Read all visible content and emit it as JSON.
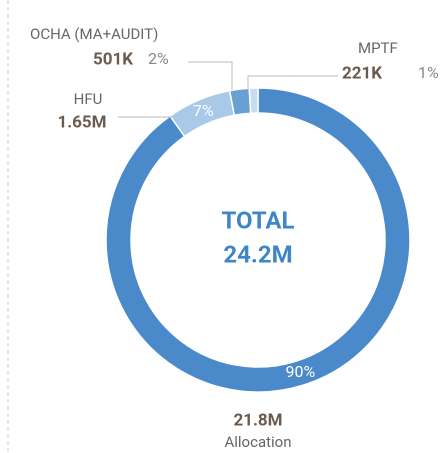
{
  "chart_data": {
    "type": "donut",
    "categories": [
      "Allocation",
      "HFU",
      "OCHA  (MA+AUDIT)",
      "MPTF"
    ],
    "values": [
      21800000,
      1650000,
      501000,
      221000
    ],
    "value_labels": [
      "21.8M",
      "1.65M",
      "501K",
      "221K"
    ],
    "percent_labels": [
      "90%",
      "7%",
      "2%",
      "1%"
    ],
    "colors": [
      "#4a8acb",
      "#a8c9e8",
      "#6a9fd4",
      "#c6dcf1"
    ],
    "total_title": "TOTAL",
    "total": {
      "value": 24200000,
      "label": "24.2M"
    }
  }
}
